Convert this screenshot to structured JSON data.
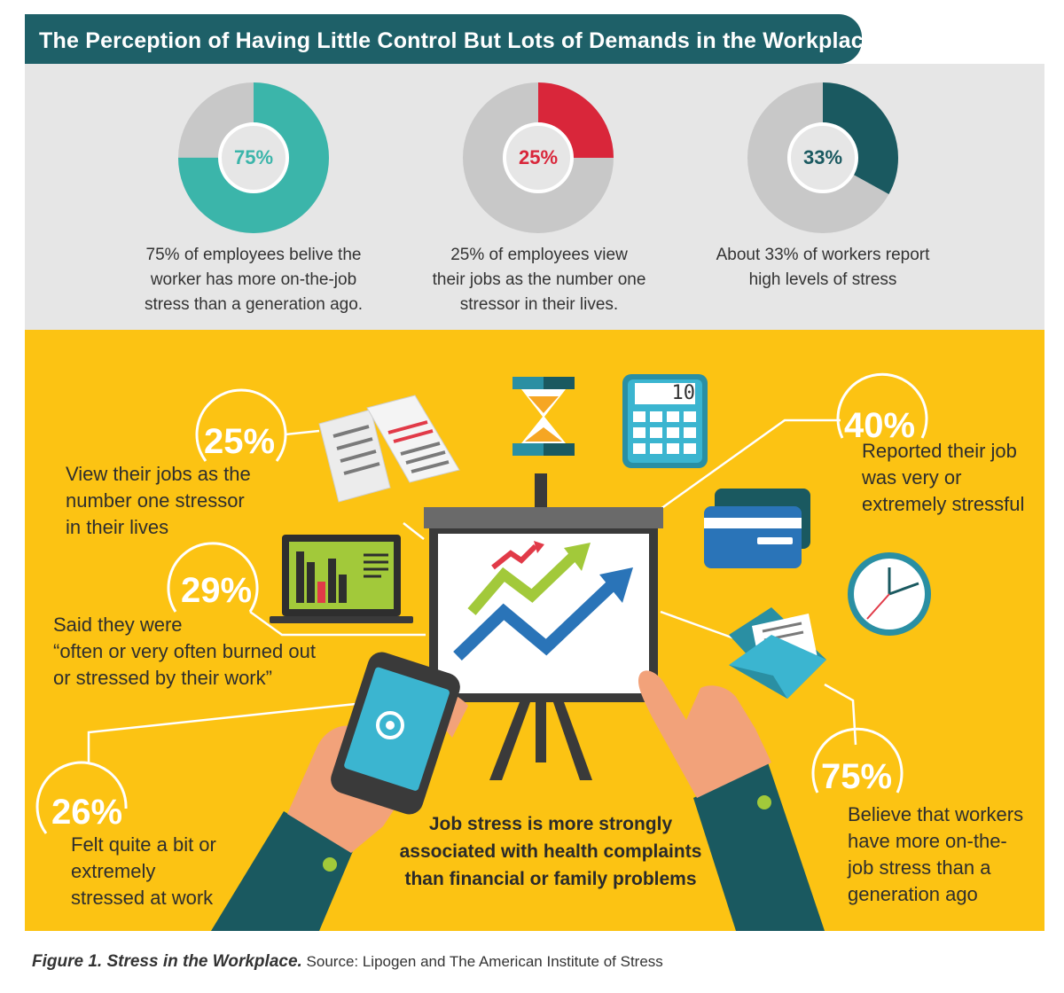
{
  "header": {
    "title": "The Perception of Having Little Control But Lots of Demands in the Workplace",
    "banner_color": "#1e6068"
  },
  "stats": [
    {
      "percent_label": "75%",
      "value": 0.75,
      "color": "#3bb5aa",
      "caption_lines": [
        "75% of employees belive the",
        "worker has more on-the-job",
        "stress than a generation ago."
      ]
    },
    {
      "percent_label": "25%",
      "value": 0.25,
      "color": "#d9263a",
      "caption_lines": [
        "25% of employees view",
        "their jobs as the number one",
        "stressor in their lives."
      ]
    },
    {
      "percent_label": "33%",
      "value": 0.33,
      "color": "#1a5960",
      "caption_lines": [
        "About 33% of workers report",
        "high levels of stress"
      ]
    }
  ],
  "callouts": {
    "view_jobs": {
      "percent": "25%",
      "lines": [
        "View their jobs as the",
        "number one stressor",
        "in their lives"
      ]
    },
    "burned_out": {
      "percent": "29%",
      "lines": [
        "Said they were",
        "“often or very often burned out",
        "or stressed by their work”"
      ]
    },
    "felt_stressed": {
      "percent": "26%",
      "lines": [
        "Felt quite a bit or",
        "extremely",
        "stressed at work"
      ]
    },
    "very_stressful": {
      "percent": "40%",
      "lines": [
        "Reported their job",
        "was very or",
        "extremely stressful"
      ]
    },
    "more_stress": {
      "percent": "75%",
      "lines": [
        "Believe that workers",
        "have more on-the-",
        "job stress than a",
        "generation ago"
      ]
    }
  },
  "center_caption_lines": [
    "Job stress is more strongly",
    "associated with health complaints",
    "than financial or family problems"
  ],
  "illustration": {
    "calculator_display": "10",
    "icons": [
      "hourglass-icon",
      "calculator-icon",
      "documents-icon",
      "credit-card-icon",
      "clock-icon",
      "envelope-icon",
      "laptop-chart-icon",
      "smartphone-icon",
      "presentation-board-icon"
    ]
  },
  "footer": {
    "figure_label": "Figure 1. Stress in the Workplace.",
    "source": "Source: Lipogen and The American Institute of Stress"
  },
  "colors": {
    "panel_grey": "#e6e6e6",
    "panel_yellow": "#fcc313",
    "donut_track": "#c8c8c8",
    "teal": "#3bb5aa",
    "red": "#d9263a",
    "dark_teal": "#1a5960"
  }
}
